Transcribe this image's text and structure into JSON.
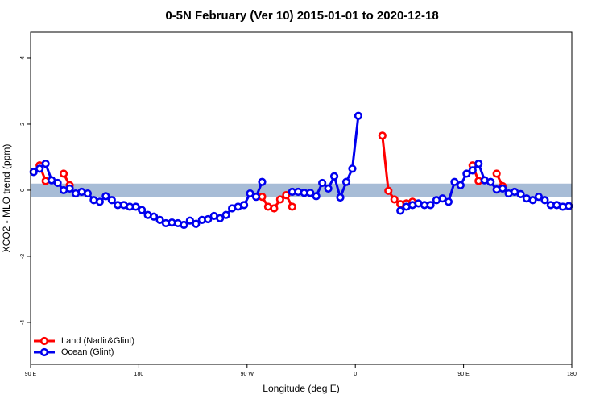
{
  "chart_data": {
    "type": "line",
    "title": "0-5N February (Ver 10)   2015-01-01 to 2020-12-18",
    "x_label": "Longitude (deg E)",
    "y_label": "XCO2 - MLO trend (ppm)",
    "xlim": [
      90,
      540
    ],
    "ylim": [
      -5.27,
      4.78
    ],
    "xticks": [
      {
        "value": 90,
        "label": "90 E"
      },
      180,
      {
        "value": 270,
        "label": "90 W"
      },
      {
        "value": 360,
        "label": "0"
      },
      {
        "value": 450,
        "label": "90 E"
      },
      {
        "value": 540,
        "label": "180"
      }
    ],
    "yticks": [
      -4,
      -2,
      0,
      2,
      4
    ],
    "band": [
      -0.2,
      0.2
    ],
    "band_color": "#a7bcd6",
    "legend": "bottom-left",
    "series": [
      {
        "name": "Land (Nadir&Glint)",
        "color": "#ff0000",
        "x": [
          97.5,
          102.5,
          107.5,
          117.5,
          122.5,
          127.5,
          282.5,
          287.5,
          292.5,
          297.5,
          302.5,
          307.5,
          312.5,
          382.5,
          387.5,
          392.5,
          397.5,
          402.5,
          407.5,
          412.5,
          457.5,
          462.5,
          467.5,
          477.5,
          482.5
        ],
        "values": [
          0.75,
          0.28,
          null,
          0.5,
          0.15,
          null,
          -0.2,
          -0.5,
          -0.55,
          -0.28,
          -0.15,
          -0.5,
          null,
          1.65,
          -0.02,
          -0.28,
          -0.42,
          -0.4,
          -0.35,
          null,
          0.75,
          0.28,
          null,
          0.5,
          0.12
        ]
      },
      {
        "name": "Ocean (Glint)",
        "color": "#0000ee",
        "x": [
          92.5,
          97.5,
          102.5,
          107.5,
          112.5,
          117.5,
          122.5,
          127.5,
          132.5,
          137.5,
          142.5,
          147.5,
          152.5,
          157.5,
          162.5,
          167.5,
          172.5,
          177.5,
          182.5,
          187.5,
          192.5,
          197.5,
          202.5,
          207.5,
          212.5,
          217.5,
          222.5,
          227.5,
          232.5,
          237.5,
          242.5,
          247.5,
          252.5,
          257.5,
          262.5,
          267.5,
          272.5,
          277.5,
          282.5,
          287.5,
          307.5,
          312.5,
          317.5,
          322.5,
          327.5,
          332.5,
          337.5,
          342.5,
          347.5,
          352.5,
          357.5,
          362.5,
          367.5,
          397.5,
          402.5,
          407.5,
          412.5,
          417.5,
          422.5,
          427.5,
          432.5,
          437.5,
          442.5,
          447.5,
          452.5,
          457.5,
          462.5,
          467.5,
          472.5,
          477.5,
          482.5,
          487.5,
          492.5,
          497.5,
          502.5,
          507.5,
          512.5,
          517.5,
          522.5,
          527.5,
          532.5,
          537.5
        ],
        "values": [
          0.55,
          0.65,
          0.8,
          0.3,
          0.22,
          0.0,
          0.05,
          -0.1,
          -0.05,
          -0.1,
          -0.3,
          -0.35,
          -0.18,
          -0.3,
          -0.45,
          -0.45,
          -0.5,
          -0.5,
          -0.6,
          -0.75,
          -0.8,
          -0.9,
          -1.0,
          -0.98,
          -1.0,
          -1.05,
          -0.92,
          -1.02,
          -0.9,
          -0.88,
          -0.78,
          -0.85,
          -0.75,
          -0.55,
          -0.5,
          -0.45,
          -0.1,
          -0.2,
          0.25,
          null,
          -0.05,
          -0.05,
          -0.08,
          -0.08,
          -0.18,
          0.22,
          0.05,
          0.42,
          -0.22,
          0.25,
          0.65,
          2.25,
          null,
          -0.62,
          -0.5,
          -0.45,
          -0.4,
          -0.45,
          -0.45,
          -0.3,
          -0.25,
          -0.35,
          0.25,
          0.15,
          0.5,
          0.6,
          0.8,
          0.3,
          0.25,
          0.02,
          0.05,
          -0.1,
          -0.05,
          -0.12,
          -0.25,
          -0.3,
          -0.2,
          -0.3,
          -0.45,
          -0.45,
          -0.5,
          -0.48
        ]
      }
    ]
  }
}
